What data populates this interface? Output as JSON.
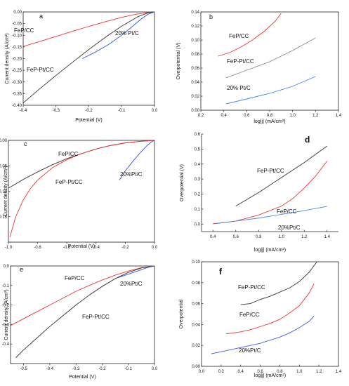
{
  "chart_data": [
    {
      "id": "a",
      "panel_label": "a",
      "type": "line",
      "xlabel": "Potential (V)",
      "ylabel": "Current density (A/cm²)",
      "xlim": [
        -0.4,
        0.0
      ],
      "ylim": [
        -0.4,
        0.0
      ],
      "xticks": [
        -0.4,
        -0.3,
        -0.2,
        -0.1,
        0.0
      ],
      "xtick_labels": [
        "-0.4",
        "-0.3",
        "-0.2",
        "-0.1",
        "0.0"
      ],
      "yticks": [
        -0.4,
        -0.35,
        -0.3,
        -0.25,
        -0.2,
        -0.15,
        -0.1,
        -0.05,
        0.0
      ],
      "ytick_labels": [
        "-0.40",
        "-0.35",
        "-0.30",
        "-0.25",
        "-0.20",
        "-0.15",
        "-0.10",
        "-0.05",
        "0.00"
      ],
      "series": [
        {
          "name": "FeP/CC",
          "color": "#ee3333",
          "x": [
            -0.4,
            -0.35,
            -0.3,
            -0.25,
            -0.2,
            -0.15,
            -0.1,
            -0.06,
            -0.03,
            0.0
          ],
          "y": [
            -0.148,
            -0.127,
            -0.105,
            -0.083,
            -0.062,
            -0.042,
            -0.023,
            -0.011,
            -0.004,
            0.0
          ]
        },
        {
          "name": "FeP-Pt/CC",
          "color": "#333333",
          "x": [
            -0.4,
            -0.35,
            -0.3,
            -0.25,
            -0.2,
            -0.15,
            -0.1,
            -0.05,
            -0.02,
            0.0
          ],
          "y": [
            -0.39,
            -0.33,
            -0.272,
            -0.216,
            -0.161,
            -0.109,
            -0.061,
            -0.02,
            -0.004,
            0.0
          ]
        },
        {
          "name": "20% Pt/C",
          "color": "#3355dd",
          "x": [
            -0.22,
            -0.18,
            -0.14,
            -0.1,
            -0.07,
            -0.04,
            -0.02,
            0.0
          ],
          "y": [
            -0.2,
            -0.172,
            -0.14,
            -0.1,
            -0.065,
            -0.03,
            -0.01,
            0.0
          ]
        }
      ],
      "annotations": [
        "FeP/CC",
        "FeP-Pt/CC",
        "20% Pt/C"
      ]
    },
    {
      "id": "b",
      "panel_label": "b",
      "type": "line",
      "xlabel": "log|j| (mA/cm²)",
      "ylabel": "Overpotential (V)",
      "xlim": [
        0.2,
        1.4
      ],
      "ylim": [
        0.0,
        0.14
      ],
      "xticks": [
        0.2,
        0.4,
        0.6,
        0.8,
        1.0,
        1.2,
        1.4
      ],
      "xtick_labels": [
        "0.2",
        "0.4",
        "0.6",
        "0.8",
        "1.0",
        "1.2",
        "1.4"
      ],
      "yticks": [
        0.0,
        0.02,
        0.04,
        0.06,
        0.08,
        0.1,
        0.12,
        0.14
      ],
      "ytick_labels": [
        "0.00",
        "0.02",
        "0.04",
        "0.06",
        "0.08",
        "0.10",
        "0.12",
        "0.14"
      ],
      "series": [
        {
          "name": "FeP/CC",
          "color": "#ee3333",
          "x": [
            0.35,
            0.45,
            0.55,
            0.65,
            0.75,
            0.85,
            0.9
          ],
          "y": [
            0.077,
            0.082,
            0.09,
            0.1,
            0.112,
            0.127,
            0.138
          ]
        },
        {
          "name": "FeP-Pt/CC",
          "color": "#888888",
          "x": [
            0.42,
            0.6,
            0.8,
            1.0,
            1.2
          ],
          "y": [
            0.046,
            0.057,
            0.069,
            0.085,
            0.103
          ]
        },
        {
          "name": "20% Pt/C",
          "color": "#4488ee",
          "x": [
            0.42,
            0.6,
            0.8,
            1.0,
            1.2
          ],
          "y": [
            0.009,
            0.016,
            0.024,
            0.034,
            0.048
          ]
        }
      ],
      "annotations": [
        "FeP/CC",
        "FeP-Pt/CC",
        "20% Pt/C"
      ]
    },
    {
      "id": "c",
      "panel_label": "c",
      "type": "line",
      "xlabel": "Potential (V)",
      "ylabel": "Current density (A/cm²)",
      "xlim": [
        -1.0,
        0.0
      ],
      "ylim": [
        -0.2,
        0.0
      ],
      "xticks": [
        -1.0,
        -0.8,
        -0.6,
        -0.4,
        -0.2,
        0.0
      ],
      "xtick_labels": [
        "-1.0",
        "-0.8",
        "-0.6",
        "-0.4",
        "-0.2",
        "0.0"
      ],
      "yticks": [
        -0.2,
        -0.15,
        -0.1,
        -0.05,
        0.0
      ],
      "ytick_labels": [
        "",
        "-0.15",
        "-0.10",
        "-0.05",
        "0.00"
      ],
      "series": [
        {
          "name": "FeP/CC",
          "color": "#333333",
          "x": [
            -1.0,
            -0.9,
            -0.8,
            -0.7,
            -0.6,
            -0.5,
            -0.4,
            -0.3,
            -0.2,
            -0.1,
            0.0
          ],
          "y": [
            -0.094,
            -0.077,
            -0.062,
            -0.048,
            -0.036,
            -0.026,
            -0.017,
            -0.01,
            -0.005,
            -0.002,
            0.0
          ]
        },
        {
          "name": "FeP-Pt/CC",
          "color": "#ee3333",
          "x": [
            -0.99,
            -0.95,
            -0.9,
            -0.85,
            -0.8,
            -0.7,
            -0.6,
            -0.5,
            -0.4,
            -0.3,
            -0.2,
            -0.1,
            0.0
          ],
          "y": [
            -0.19,
            -0.15,
            -0.118,
            -0.095,
            -0.078,
            -0.054,
            -0.038,
            -0.026,
            -0.017,
            -0.01,
            -0.005,
            -0.002,
            0.0
          ]
        },
        {
          "name": "20%Pt/C",
          "color": "#3355dd",
          "x": [
            -0.24,
            -0.2,
            -0.15,
            -0.1,
            -0.05,
            -0.02,
            0.0
          ],
          "y": [
            -0.078,
            -0.06,
            -0.042,
            -0.025,
            -0.01,
            -0.003,
            0.0
          ]
        }
      ],
      "annotations": [
        "FeP/CC",
        "FeP-Pt/CC",
        "20%Pt/C"
      ]
    },
    {
      "id": "d",
      "panel_label": "d",
      "type": "line",
      "xlabel": "log|j| (mA/cm²)",
      "ylabel": "Overpotential (V)",
      "xlim": [
        0.3,
        1.5
      ],
      "ylim": [
        -0.05,
        0.6
      ],
      "xticks": [
        0.4,
        0.6,
        0.8,
        1.0,
        1.2,
        1.4
      ],
      "xtick_labels": [
        "0.4",
        "0.6",
        "0.8",
        "1.0",
        "1.2",
        "1.4"
      ],
      "yticks": [
        0.0,
        0.1,
        0.2,
        0.3,
        0.4,
        0.5,
        0.6
      ],
      "ytick_labels": [
        "0.0",
        "0.1",
        "0.2",
        "0.3",
        "0.4",
        "0.5",
        "0.6"
      ],
      "series": [
        {
          "name": "FeP-Pt/CC",
          "color": "#333333",
          "x": [
            0.6,
            0.8,
            1.0,
            1.2,
            1.4
          ],
          "y": [
            0.12,
            0.21,
            0.31,
            0.41,
            0.52
          ]
        },
        {
          "name": "FeP/CC",
          "color": "#ee3333",
          "x": [
            0.4,
            0.6,
            0.8,
            1.0,
            1.1,
            1.2,
            1.3,
            1.4
          ],
          "y": [
            0.002,
            0.02,
            0.06,
            0.12,
            0.17,
            0.24,
            0.32,
            0.42
          ]
        },
        {
          "name": "20%Pt/C",
          "color": "#4488ee",
          "x": [
            0.42,
            0.6,
            0.8,
            1.0,
            1.2,
            1.4
          ],
          "y": [
            0.003,
            0.02,
            0.04,
            0.065,
            0.09,
            0.118
          ]
        }
      ],
      "annotations": [
        "FeP-Pt/CC",
        "FeP/CC",
        "20%Pt/C"
      ]
    },
    {
      "id": "e",
      "panel_label": "e",
      "type": "line",
      "xlabel": "Potential (V)",
      "ylabel": "Current density (A/cm²)",
      "xlim": [
        -0.55,
        0.0
      ],
      "ylim": [
        -0.5,
        0.0
      ],
      "xticks": [
        -0.5,
        -0.4,
        -0.3,
        -0.2,
        -0.1,
        0.0
      ],
      "xtick_labels": [
        "-0.5",
        "-0.4",
        "-0.3",
        "-0.2",
        "-0.1",
        "0.0"
      ],
      "yticks": [
        -0.5,
        -0.4,
        -0.3,
        -0.2,
        -0.1,
        0.0
      ],
      "ytick_labels": [
        "",
        "-0.4",
        "-0.3",
        "-0.2",
        "-0.1",
        "0.0"
      ],
      "series": [
        {
          "name": "FeP/CC",
          "color": "#ee3333",
          "x": [
            -0.55,
            -0.5,
            -0.45,
            -0.4,
            -0.35,
            -0.3,
            -0.25,
            -0.2,
            -0.15,
            -0.1,
            -0.05,
            0.0
          ],
          "y": [
            -0.305,
            -0.27,
            -0.235,
            -0.2,
            -0.165,
            -0.13,
            -0.1,
            -0.072,
            -0.047,
            -0.026,
            -0.009,
            0.0
          ]
        },
        {
          "name": "FeP-Pt/CC",
          "color": "#333333",
          "x": [
            -0.53,
            -0.5,
            -0.45,
            -0.4,
            -0.35,
            -0.3,
            -0.25,
            -0.2,
            -0.15,
            -0.1,
            -0.05,
            0.0
          ],
          "y": [
            -0.47,
            -0.43,
            -0.37,
            -0.31,
            -0.255,
            -0.2,
            -0.15,
            -0.105,
            -0.065,
            -0.033,
            -0.01,
            0.0
          ]
        },
        {
          "name": "20%Pt/C",
          "color": "#3355dd",
          "x": [
            -0.14,
            -0.1,
            -0.07,
            -0.04,
            -0.02,
            0.0
          ],
          "y": [
            -0.06,
            -0.042,
            -0.028,
            -0.014,
            -0.005,
            0.0
          ]
        }
      ],
      "annotations": [
        "FeP/CC",
        "20%Pt/C",
        "FeP-Pt/CC"
      ]
    },
    {
      "id": "f",
      "panel_label": "f",
      "type": "line",
      "xlabel": "log|j| (mA/cm²)",
      "ylabel": "Overpotential",
      "xlim": [
        0.0,
        1.4
      ],
      "ylim": [
        0.0,
        0.1
      ],
      "xticks": [
        0.0,
        0.2,
        0.4,
        0.6,
        0.8,
        1.0,
        1.2,
        1.4
      ],
      "xtick_labels": [
        "0.0",
        "0.2",
        "0.4",
        "0.6",
        "0.8",
        "1.0",
        "1.2",
        "1.4"
      ],
      "yticks": [
        0.0,
        0.02,
        0.04,
        0.06,
        0.08,
        0.1
      ],
      "ytick_labels": [
        "0.00",
        "0.02",
        "0.04",
        "0.06",
        "0.08",
        "0.10"
      ],
      "series": [
        {
          "name": "FeP-Pt/CC",
          "color": "#333333",
          "x": [
            0.4,
            0.5,
            0.6,
            0.7,
            0.8,
            0.9,
            1.0,
            1.1,
            1.18
          ],
          "y": [
            0.059,
            0.06,
            0.064,
            0.067,
            0.071,
            0.075,
            0.081,
            0.09,
            0.1
          ]
        },
        {
          "name": "FeP/CC",
          "color": "#ee3333",
          "x": [
            0.25,
            0.4,
            0.5,
            0.6,
            0.7,
            0.8,
            0.9,
            1.0,
            1.1,
            1.15
          ],
          "y": [
            0.031,
            0.033,
            0.035,
            0.038,
            0.041,
            0.045,
            0.051,
            0.058,
            0.07,
            0.079
          ]
        },
        {
          "name": "20%Pt/C",
          "color": "#4455ee",
          "x": [
            0.1,
            0.2,
            0.3,
            0.4,
            0.5,
            0.6,
            0.7,
            0.8,
            0.9,
            1.0,
            1.1,
            1.15
          ],
          "y": [
            0.012,
            0.014,
            0.016,
            0.018,
            0.02,
            0.022,
            0.025,
            0.028,
            0.032,
            0.037,
            0.043,
            0.048
          ]
        }
      ],
      "annotations": [
        "FeP-Pt/CC",
        "FeP/CC",
        "20%Pt/C"
      ]
    }
  ]
}
